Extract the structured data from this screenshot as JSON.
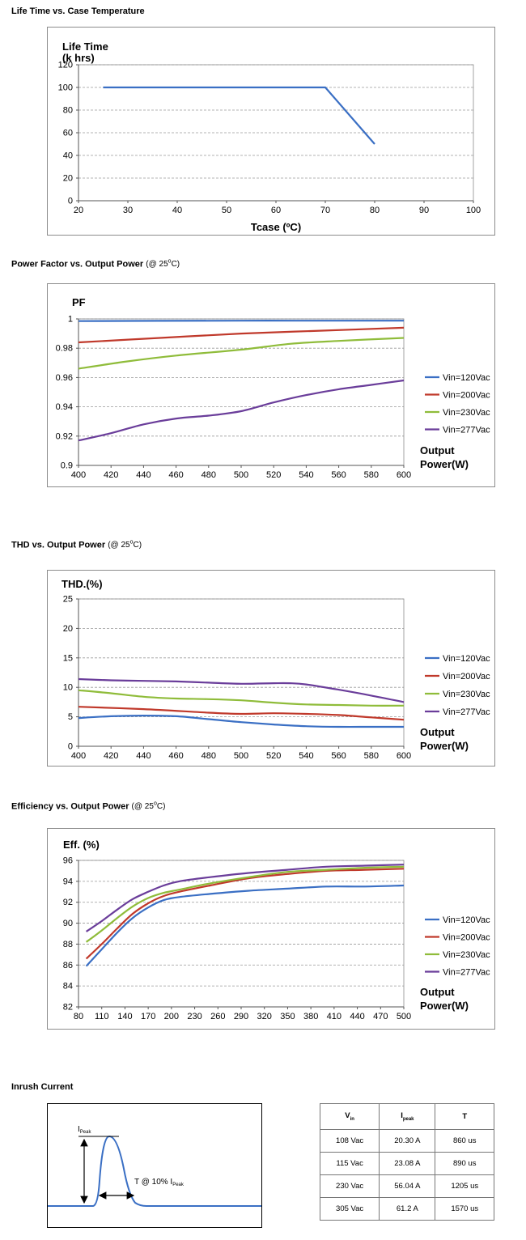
{
  "sections": {
    "lifetime": {
      "title": "Life Time vs. Case Temperature"
    },
    "pf": {
      "title": "Power Factor vs. Output Power",
      "cond_pre": "(@ 25",
      "cond_deg": "o",
      "cond_post": "C)"
    },
    "thd": {
      "title": "THD vs. Output Power",
      "cond_pre": "(@ 25",
      "cond_deg": "o",
      "cond_post": "C)"
    },
    "eff": {
      "title": "Efficiency vs. Output Power",
      "cond_pre": "(@ 25",
      "cond_deg": "o",
      "cond_post": "C)"
    },
    "inrush": {
      "title": "Inrush Current"
    }
  },
  "colors": {
    "blue": "#3a6fc4",
    "red": "#c0392b",
    "green": "#8fbc3a",
    "purple": "#6a3d9a",
    "grid": "#999999"
  },
  "chart_data": [
    {
      "id": "lifetime",
      "type": "line",
      "title": "",
      "ylabel_lines": [
        "Life Time",
        "(k hrs)"
      ],
      "xlabel": "Tcase (ºC)",
      "xlim": [
        20,
        100
      ],
      "ylim": [
        0,
        120
      ],
      "xticks": [
        20,
        30,
        40,
        50,
        60,
        70,
        80,
        90,
        100
      ],
      "yticks": [
        0,
        20,
        40,
        60,
        80,
        100,
        120
      ],
      "grid": true,
      "legend": "none",
      "series": [
        {
          "color": "#3a6fc4",
          "x": [
            25,
            70,
            80
          ],
          "y": [
            100,
            100,
            50
          ]
        }
      ]
    },
    {
      "id": "pf",
      "type": "line",
      "ylabel_lines": [
        "PF"
      ],
      "xlabel_lines": [
        "Output",
        "Power(W)"
      ],
      "xlim": [
        400,
        600
      ],
      "ylim": [
        0.9,
        1.0
      ],
      "xticks": [
        400,
        420,
        440,
        460,
        480,
        500,
        520,
        540,
        560,
        580,
        600
      ],
      "yticks": [
        0.9,
        0.92,
        0.94,
        0.96,
        0.98,
        1
      ],
      "ytick_labels": [
        "0.9",
        "0.92",
        "0.94",
        "0.96",
        "0.98",
        "1"
      ],
      "grid": true,
      "legend": "right",
      "series": [
        {
          "name": "Vin=120Vac",
          "color": "#3a6fc4",
          "x": [
            400,
            450,
            500,
            550,
            600
          ],
          "y": [
            0.9985,
            0.9987,
            0.9988,
            0.9988,
            0.9988
          ]
        },
        {
          "name": "Vin=200Vac",
          "color": "#c0392b",
          "x": [
            400,
            450,
            500,
            550,
            600
          ],
          "y": [
            0.984,
            0.987,
            0.99,
            0.992,
            0.994
          ]
        },
        {
          "name": "Vin=230Vac",
          "color": "#8fbc3a",
          "x": [
            400,
            430,
            460,
            500,
            530,
            560,
            600
          ],
          "y": [
            0.966,
            0.971,
            0.975,
            0.979,
            0.983,
            0.985,
            0.987
          ]
        },
        {
          "name": "Vin=277Vac",
          "color": "#6a3d9a",
          "x": [
            400,
            420,
            440,
            460,
            480,
            500,
            520,
            540,
            560,
            580,
            600
          ],
          "y": [
            0.917,
            0.922,
            0.928,
            0.932,
            0.934,
            0.937,
            0.943,
            0.948,
            0.952,
            0.955,
            0.958
          ]
        }
      ]
    },
    {
      "id": "thd",
      "type": "line",
      "ylabel_lines": [
        "THD.(%)"
      ],
      "xlabel_lines": [
        "Output",
        "Power(W)"
      ],
      "xlim": [
        400,
        600
      ],
      "ylim": [
        0,
        25
      ],
      "xticks": [
        400,
        420,
        440,
        460,
        480,
        500,
        520,
        540,
        560,
        580,
        600
      ],
      "yticks": [
        0,
        5,
        10,
        15,
        20,
        25
      ],
      "grid": true,
      "legend": "right",
      "series": [
        {
          "name": "Vin=120Vac",
          "color": "#3a6fc4",
          "x": [
            400,
            420,
            440,
            460,
            480,
            500,
            520,
            540,
            560,
            580,
            600
          ],
          "y": [
            4.8,
            5.1,
            5.2,
            5.1,
            4.6,
            4.1,
            3.7,
            3.4,
            3.3,
            3.3,
            3.3
          ]
        },
        {
          "name": "Vin=200Vac",
          "color": "#c0392b",
          "x": [
            400,
            440,
            480,
            500,
            520,
            540,
            560,
            580,
            600
          ],
          "y": [
            6.7,
            6.3,
            5.7,
            5.5,
            5.6,
            5.5,
            5.3,
            4.9,
            4.5
          ]
        },
        {
          "name": "Vin=230Vac",
          "color": "#8fbc3a",
          "x": [
            400,
            420,
            440,
            460,
            480,
            500,
            520,
            540,
            560,
            580,
            600
          ],
          "y": [
            9.5,
            9.0,
            8.4,
            8.1,
            8.0,
            7.8,
            7.4,
            7.1,
            7.0,
            6.9,
            6.9
          ]
        },
        {
          "name": "Vin=277Vac",
          "color": "#6a3d9a",
          "x": [
            400,
            420,
            440,
            460,
            480,
            500,
            520,
            530,
            540,
            560,
            580,
            600
          ],
          "y": [
            11.4,
            11.2,
            11.1,
            11.0,
            10.8,
            10.6,
            10.7,
            10.7,
            10.5,
            9.6,
            8.6,
            7.5
          ]
        }
      ]
    },
    {
      "id": "eff",
      "type": "line",
      "ylabel_lines": [
        "Eff. (%)"
      ],
      "xlabel_lines": [
        "Output",
        "Power(W)"
      ],
      "xlim": [
        80,
        500
      ],
      "ylim": [
        82,
        96
      ],
      "xticks": [
        80,
        110,
        140,
        170,
        200,
        230,
        260,
        290,
        320,
        350,
        380,
        410,
        440,
        470,
        500
      ],
      "yticks": [
        82,
        84,
        86,
        88,
        90,
        92,
        94,
        96
      ],
      "grid": true,
      "legend": "right",
      "series": [
        {
          "name": "Vin=120Vac",
          "color": "#3a6fc4",
          "x": [
            90,
            110,
            130,
            150,
            170,
            190,
            210,
            250,
            300,
            350,
            400,
            450,
            500
          ],
          "y": [
            85.9,
            87.5,
            89.1,
            90.5,
            91.5,
            92.2,
            92.5,
            92.8,
            93.1,
            93.3,
            93.5,
            93.5,
            93.6
          ]
        },
        {
          "name": "Vin=200Vac",
          "color": "#c0392b",
          "x": [
            90,
            110,
            130,
            150,
            170,
            190,
            210,
            250,
            300,
            350,
            400,
            450,
            500
          ],
          "y": [
            86.6,
            88.0,
            89.5,
            90.9,
            91.9,
            92.6,
            93.0,
            93.6,
            94.3,
            94.7,
            95.0,
            95.1,
            95.2
          ]
        },
        {
          "name": "Vin=230Vac",
          "color": "#8fbc3a",
          "x": [
            90,
            110,
            130,
            150,
            170,
            190,
            210,
            250,
            300,
            350,
            400,
            450,
            500
          ],
          "y": [
            88.2,
            89.3,
            90.5,
            91.6,
            92.4,
            92.9,
            93.2,
            93.8,
            94.4,
            94.9,
            95.1,
            95.3,
            95.4
          ]
        },
        {
          "name": "Vin=277Vac",
          "color": "#6a3d9a",
          "x": [
            90,
            110,
            130,
            150,
            170,
            190,
            210,
            250,
            300,
            350,
            400,
            450,
            500
          ],
          "y": [
            89.2,
            90.2,
            91.3,
            92.3,
            93.0,
            93.6,
            94.0,
            94.4,
            94.8,
            95.1,
            95.4,
            95.5,
            95.6
          ]
        }
      ]
    }
  ],
  "inrush": {
    "ipeak_main": "I",
    "ipeak_sub": "Peak",
    "t_label_main": "T @ 10% I",
    "t_label_sub": "Peak",
    "table": {
      "headers": [
        {
          "main": "V",
          "sub": "in"
        },
        {
          "main": "I",
          "sub": "peak"
        },
        {
          "main": "T",
          "sub": ""
        }
      ],
      "rows": [
        [
          "108 Vac",
          "20.30 A",
          "860 us"
        ],
        [
          "115 Vac",
          "23.08 A",
          "890 us"
        ],
        [
          "230 Vac",
          "56.04 A",
          "1205 us"
        ],
        [
          "305 Vac",
          "61.2 A",
          "1570 us"
        ]
      ]
    }
  }
}
